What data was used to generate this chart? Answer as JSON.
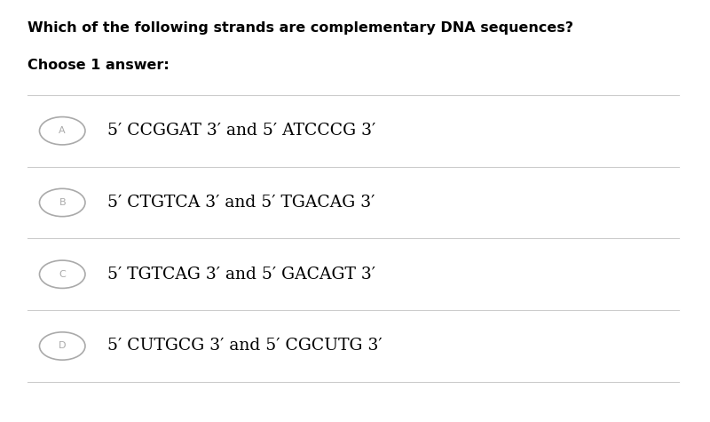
{
  "title": "Which of the following strands are complementary DNA sequences?",
  "subtitle": "Choose 1 answer:",
  "options": [
    {
      "label": "A",
      "text1": "5′ CCGGAT 3′",
      "and": " and ",
      "text2": "5′ ATCCCG 3′"
    },
    {
      "label": "B",
      "text1": "5′ CTGTCA 3′",
      "and": " and ",
      "text2": "5′ TGACAG 3′"
    },
    {
      "label": "C",
      "text1": "5′ TGTCAG 3′",
      "and": " and ",
      "text2": "5′ GACAGT 3′"
    },
    {
      "label": "D",
      "text1": "5′ CUTGCG 3′",
      "and": " and ",
      "text2": "5′ CGCUTG 3′"
    }
  ],
  "bg_color": "#ffffff",
  "text_color": "#000000",
  "line_color": "#cccccc",
  "circle_color": "#aaaaaa",
  "title_fontsize": 11.5,
  "subtitle_fontsize": 11.5,
  "option_fontsize": 13.5,
  "and_fontsize": 11.5
}
